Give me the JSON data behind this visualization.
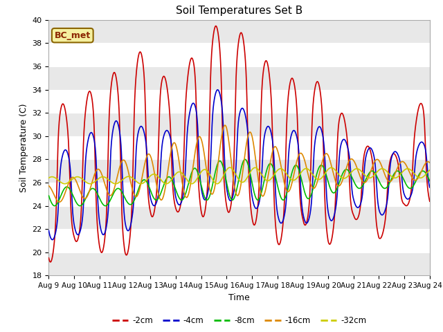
{
  "title": "Soil Temperatures Set B",
  "xlabel": "Time",
  "ylabel": "Soil Temperature (C)",
  "xlim": [
    0,
    15
  ],
  "ylim": [
    18,
    40
  ],
  "yticks": [
    18,
    20,
    22,
    24,
    26,
    28,
    30,
    32,
    34,
    36,
    38,
    40
  ],
  "xtick_labels": [
    "Aug 9",
    "Aug 10",
    "Aug 11",
    "Aug 12",
    "Aug 13",
    "Aug 14",
    "Aug 15",
    "Aug 16",
    "Aug 17",
    "Aug 18",
    "Aug 19",
    "Aug 20",
    "Aug 21",
    "Aug 22",
    "Aug 23",
    "Aug 24"
  ],
  "series_colors": [
    "#cc0000",
    "#0000cc",
    "#00bb00",
    "#dd8800",
    "#cccc00"
  ],
  "series_names": [
    "-2cm",
    "-4cm",
    "-8cm",
    "-16cm",
    "-32cm"
  ],
  "annotation": "BC_met",
  "fig_bg": "#ffffff",
  "plot_bg": "#ffffff",
  "grid_color": "#d8d8d8",
  "band_color": "#e8e8e8"
}
